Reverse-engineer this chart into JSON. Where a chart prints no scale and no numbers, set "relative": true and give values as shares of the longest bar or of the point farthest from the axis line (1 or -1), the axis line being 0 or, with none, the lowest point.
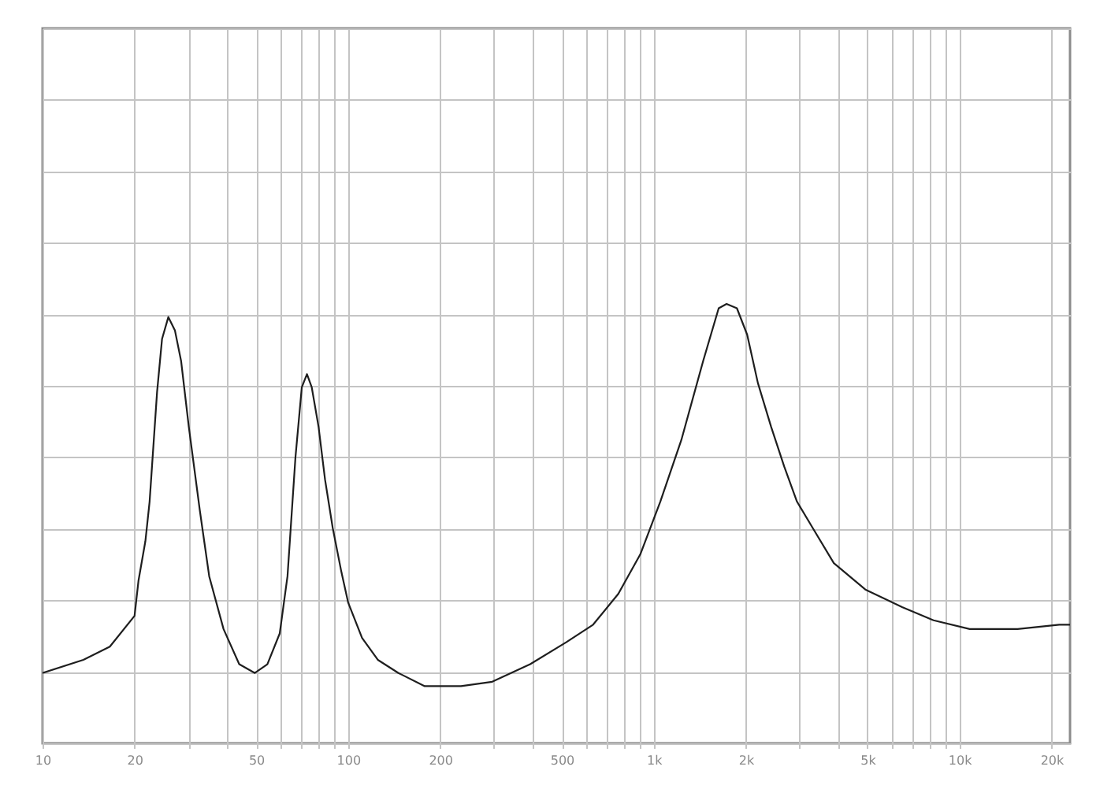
{
  "chart_data": {
    "type": "line",
    "relative": true,
    "log": "x",
    "grid": true,
    "xlim": [
      10,
      23000
    ],
    "xticks": [
      10,
      20,
      {
        "value": 30,
        "label": null
      },
      {
        "value": 40,
        "label": null
      },
      50,
      {
        "value": 60,
        "label": null
      },
      {
        "value": 70,
        "label": null
      },
      {
        "value": 80,
        "label": null
      },
      {
        "value": 90,
        "label": null
      },
      100,
      200,
      {
        "value": 300,
        "label": null
      },
      {
        "value": 400,
        "label": null
      },
      500,
      {
        "value": 600,
        "label": null
      },
      {
        "value": 700,
        "label": null
      },
      {
        "value": 800,
        "label": null
      },
      {
        "value": 900,
        "label": null
      },
      {
        "value": 1000,
        "label": "1k"
      },
      {
        "value": 2000,
        "label": "2k"
      },
      {
        "value": 3000,
        "label": null
      },
      {
        "value": 4000,
        "label": null
      },
      {
        "value": 5000,
        "label": "5k"
      },
      {
        "value": 6000,
        "label": null
      },
      {
        "value": 7000,
        "label": null
      },
      {
        "value": 8000,
        "label": null
      },
      {
        "value": 9000,
        "label": null
      },
      {
        "value": 10000,
        "label": "10k"
      },
      {
        "value": 20000,
        "label": "20k"
      }
    ],
    "x": [
      10,
      13.6,
      16.6,
      20,
      20.6,
      21.7,
      22.4,
      23.7,
      24.6,
      25.8,
      27.1,
      28.4,
      30.1,
      32.7,
      35.1,
      39.1,
      44,
      49.5,
      54.4,
      59.7,
      63.3,
      67.2,
      70.5,
      73.3,
      76,
      80,
      84,
      89,
      95,
      100,
      111,
      125,
      146,
      178,
      234,
      296,
      394,
      517,
      633,
      765,
      903,
      1050,
      1230,
      1450,
      1630,
      1730,
      1870,
      2020,
      2190,
      2420,
      2670,
      2940,
      3310,
      3880,
      4920,
      6490,
      8220,
      10800,
      15500,
      21200,
      23000
    ],
    "series": [
      {
        "color": "#1e1e1e",
        "values": [
          0.16,
          0.19,
          0.22,
          0.29,
          0.37,
          0.46,
          0.55,
          0.8,
          0.92,
          0.97,
          0.94,
          0.87,
          0.72,
          0.53,
          0.38,
          0.26,
          0.18,
          0.16,
          0.18,
          0.25,
          0.38,
          0.65,
          0.81,
          0.84,
          0.81,
          0.72,
          0.6,
          0.49,
          0.39,
          0.32,
          0.24,
          0.19,
          0.16,
          0.13,
          0.13,
          0.14,
          0.18,
          0.23,
          0.27,
          0.34,
          0.43,
          0.55,
          0.69,
          0.87,
          0.99,
          1,
          0.99,
          0.93,
          0.82,
          0.72,
          0.63,
          0.55,
          0.49,
          0.41,
          0.35,
          0.31,
          0.28,
          0.26,
          0.26,
          0.27,
          0.27
        ]
      }
    ]
  }
}
